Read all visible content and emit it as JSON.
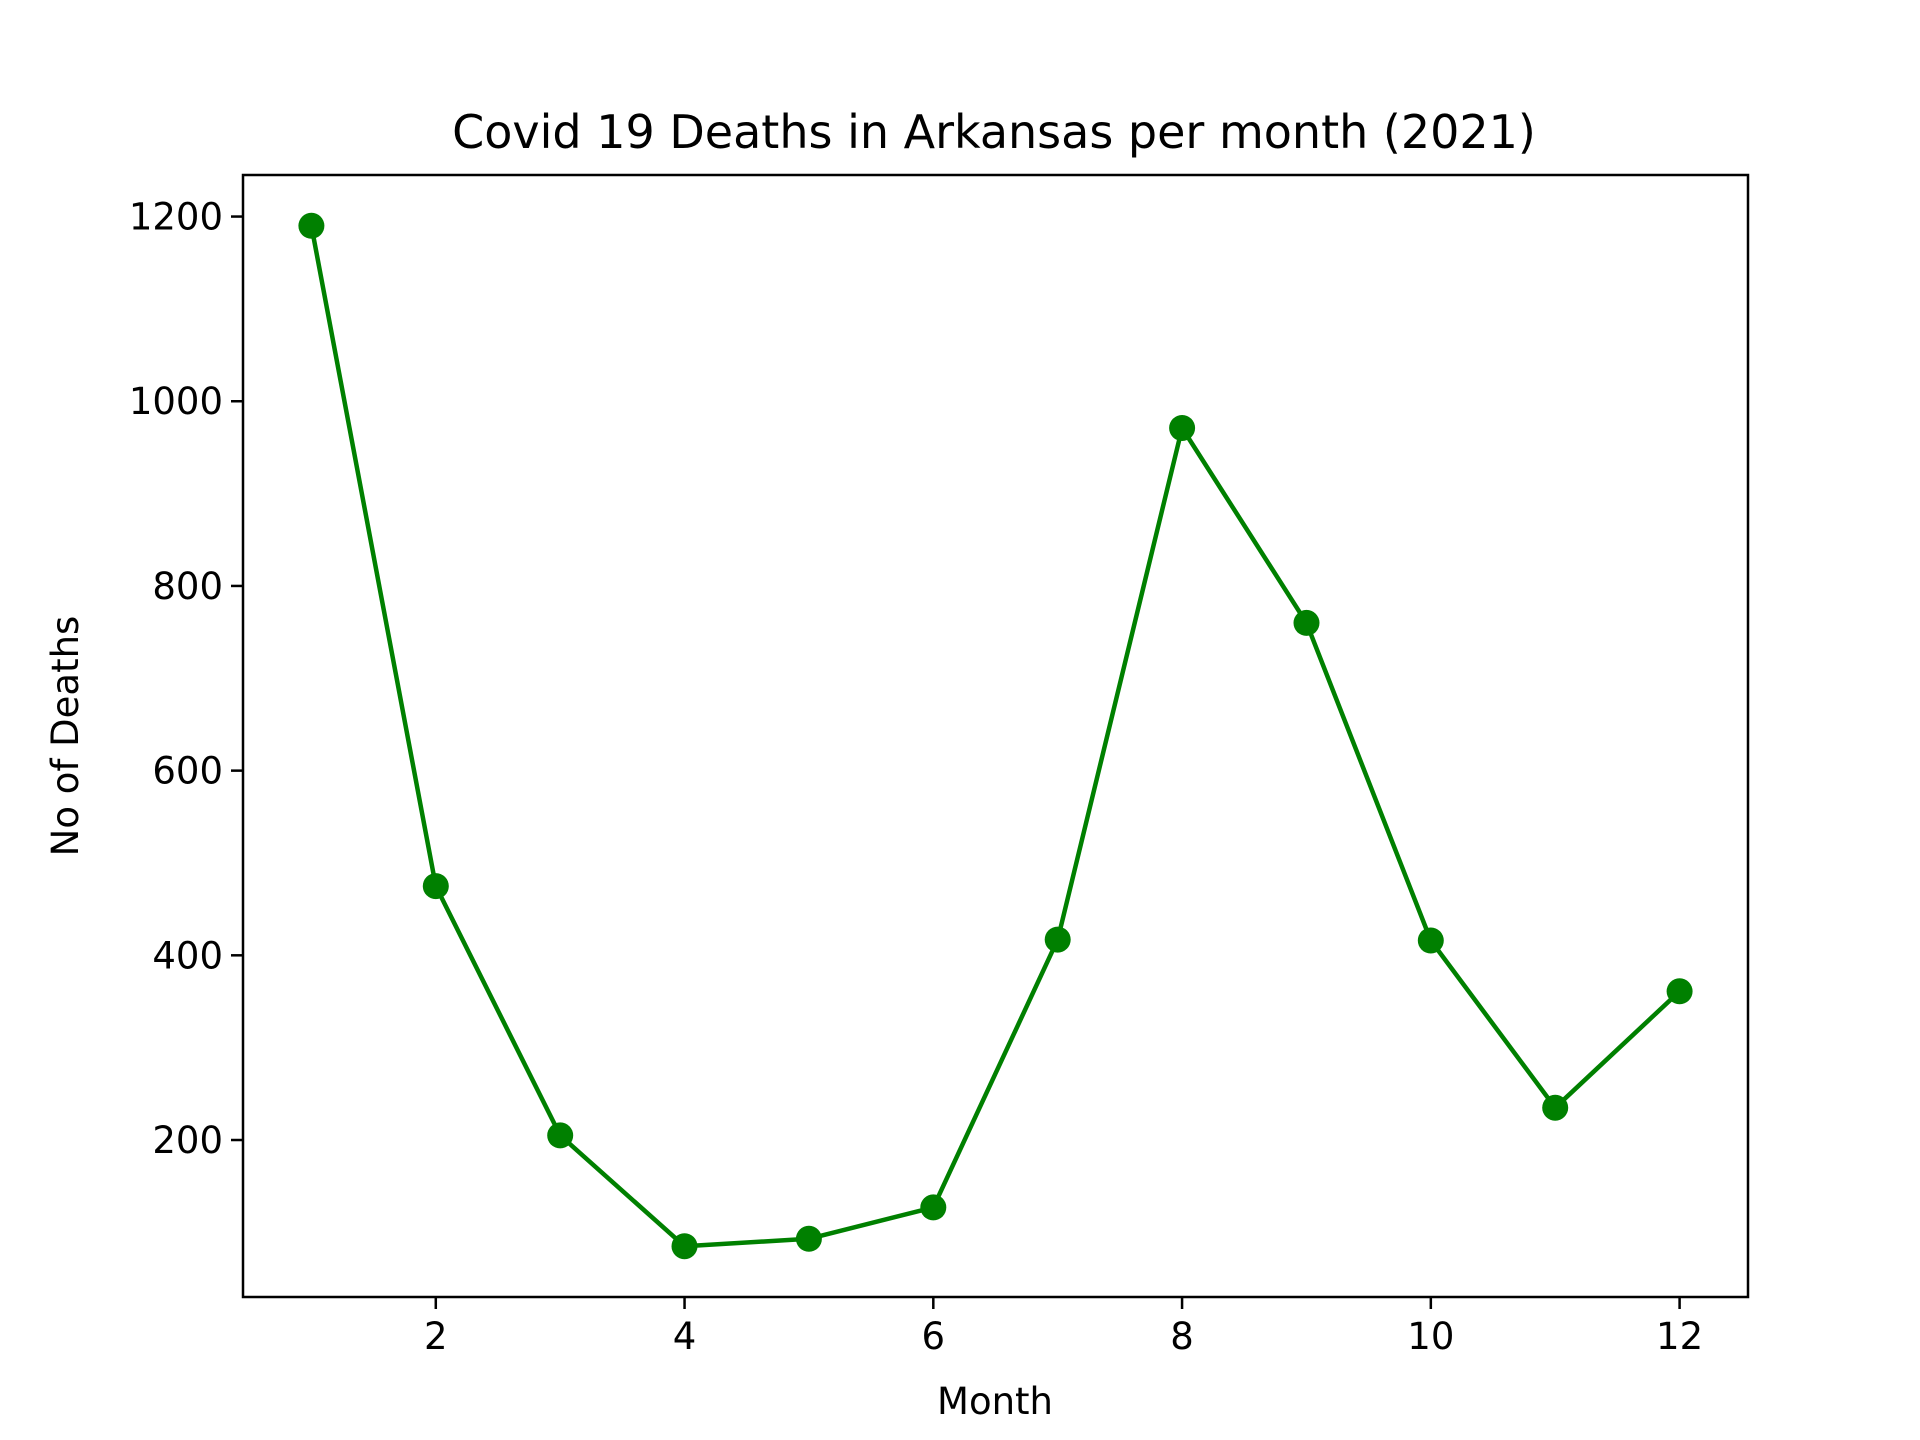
{
  "chart_data": {
    "type": "line",
    "title": "Covid 19 Deaths in Arkansas per month (2021)",
    "xlabel": "Month",
    "ylabel": "No of Deaths",
    "x": [
      1,
      2,
      3,
      4,
      5,
      6,
      7,
      8,
      9,
      10,
      11,
      12
    ],
    "series": [
      {
        "values": [
          1190,
          475,
          205,
          85,
          93,
          127,
          417,
          971,
          760,
          416,
          235,
          361
        ],
        "color": "#008000",
        "marker": "circle"
      }
    ],
    "xlim": [
      0.45,
      12.55
    ],
    "ylim": [
      30,
      1245
    ],
    "xticks": [
      2,
      4,
      6,
      8,
      10,
      12
    ],
    "yticks": [
      200,
      400,
      600,
      800,
      1000,
      1200
    ],
    "grid": false,
    "legend": "none"
  }
}
